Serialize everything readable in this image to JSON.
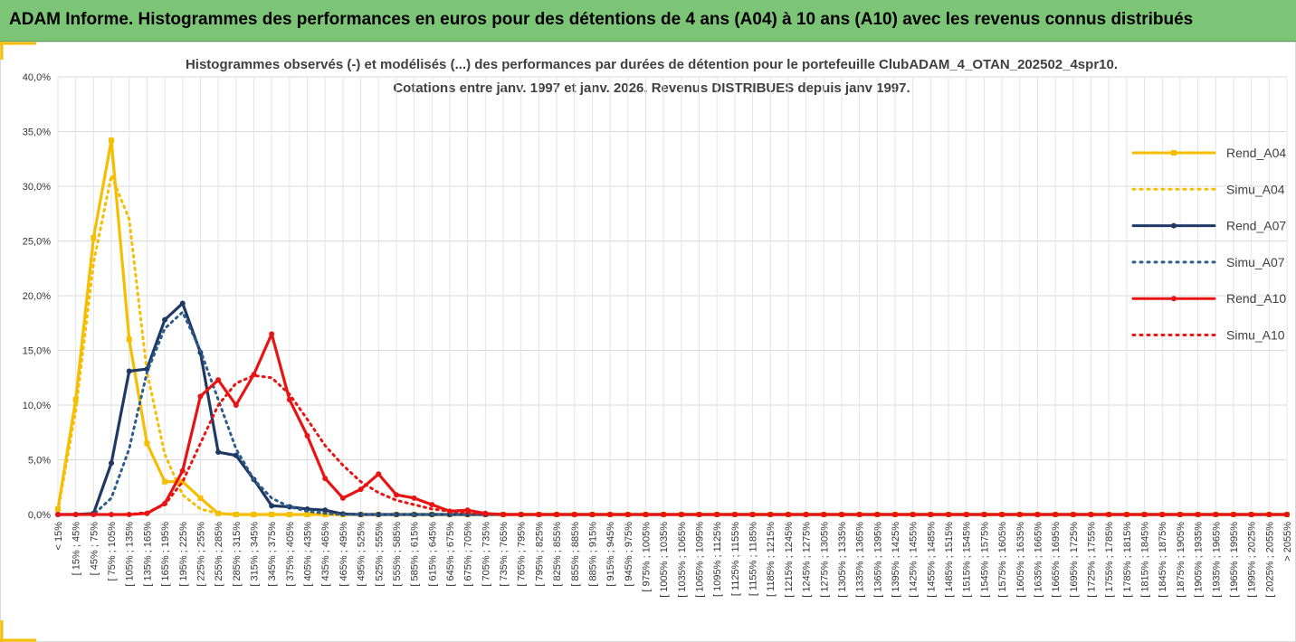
{
  "header": {
    "title": "ADAM Informe. Histogrammes des performances en euros pour des détentions de 4 ans (A04) à 10 ans (A10) avec les revenus connus distribués"
  },
  "chart_data": {
    "type": "line",
    "title": "Histogrammes observés (-) et modélisés (...) des performances par durées de détention pour le portefeuille ClubADAM_4_OTAN_202502_4spr10.",
    "subtitle": "Cotations entre janv. 1997 et janv. 2026. Revenus DISTRIBUES depuis janv 1997.",
    "categories": [
      "< 15%",
      "[ 15% ; 45%",
      "[ 45% ; 75%",
      "[ 75% ; 105%",
      "[ 105% ; 135%",
      "[ 135% ; 165%",
      "[ 165% ; 195%",
      "[ 195% ; 225%",
      "[ 225% ; 255%",
      "[ 255% ; 285%",
      "[ 285% ; 315%",
      "[ 315% ; 345%",
      "[ 345% ; 375%",
      "[ 375% ; 405%",
      "[ 405% ; 435%",
      "[ 435% ; 465%",
      "[ 465% ; 495%",
      "[ 495% ; 525%",
      "[ 525% ; 555%",
      "[ 555% ; 585%",
      "[ 585% ; 615%",
      "[ 615% ; 645%",
      "[ 645% ; 675%",
      "[ 675% ; 705%",
      "[ 705% ; 735%",
      "[ 735% ; 765%",
      "[ 765% ; 795%",
      "[ 795% ; 825%",
      "[ 825% ; 855%",
      "[ 855% ; 885%",
      "[ 885% ; 915%",
      "[ 915% ; 945%",
      "[ 945% ; 975%",
      "[ 975% ; 1005%",
      "[ 1005% ; 1035%",
      "[ 1035% ; 1065%",
      "[ 1065% ; 1095%",
      "[ 1095% ; 1125%",
      "[ 1125% ; 1155%",
      "[ 1155% ; 1185%",
      "[ 1185% ; 1215%",
      "[ 1215% ; 1245%",
      "[ 1245% ; 1275%",
      "[ 1275% ; 1305%",
      "[ 1305% ; 1335%",
      "[ 1335% ; 1365%",
      "[ 1365% ; 1395%",
      "[ 1395% ; 1425%",
      "[ 1425% ; 1455%",
      "[ 1455% ; 1485%",
      "[ 1485% ; 1515%",
      "[ 1515% ; 1545%",
      "[ 1545% ; 1575%",
      "[ 1575% ; 1605%",
      "[ 1605% ; 1635%",
      "[ 1635% ; 1665%",
      "[ 1665% ; 1695%",
      "[ 1695% ; 1725%",
      "[ 1725% ; 1755%",
      "[ 1755% ; 1785%",
      "[ 1785% ; 1815%",
      "[ 1815% ; 1845%",
      "[ 1845% ; 1875%",
      "[ 1875% ; 1905%",
      "[ 1905% ; 1935%",
      "[ 1935% ; 1965%",
      "[ 1965% ; 1995%",
      "[ 1995% ; 2025%",
      "[ 2025% ; 2055%",
      "> 2055%"
    ],
    "ylim": [
      0,
      40
    ],
    "yticks": [
      {
        "value": 0,
        "label": "0,0%"
      },
      {
        "value": 5,
        "label": "5,0%"
      },
      {
        "value": 10,
        "label": "10,0%"
      },
      {
        "value": 15,
        "label": "15,0%"
      },
      {
        "value": 20,
        "label": "20,0%"
      },
      {
        "value": 25,
        "label": "25,0%"
      },
      {
        "value": 30,
        "label": "30,0%"
      },
      {
        "value": 35,
        "label": "35,0%"
      },
      {
        "value": 40,
        "label": "40,0%"
      }
    ],
    "grid": true,
    "legend": "right",
    "series": [
      {
        "name": "Rend_A04",
        "color": "#f5be00",
        "line_style": "solid",
        "marker": "square",
        "values": [
          0.5,
          10.5,
          25.3,
          34.2,
          16.0,
          6.5,
          3.0,
          3.0,
          1.5,
          0.1,
          0,
          0,
          0,
          0,
          0,
          0,
          0,
          0,
          0,
          0,
          0,
          0,
          0,
          0,
          0,
          0,
          0,
          0,
          0,
          0,
          0,
          0,
          0,
          0,
          0,
          0,
          0,
          0,
          0,
          0,
          0,
          0,
          0,
          0,
          0,
          0,
          0,
          0,
          0,
          0,
          0,
          0,
          0,
          0,
          0,
          0,
          0,
          0,
          0,
          0,
          0,
          0,
          0,
          0,
          0,
          0,
          0,
          0,
          0,
          0
        ]
      },
      {
        "name": "Simu_A04",
        "color": "#f5be00",
        "line_style": "dotted",
        "marker": null,
        "values": [
          0.3,
          9.5,
          23,
          31,
          27,
          13,
          5.5,
          1.8,
          0.5,
          0.1,
          0,
          0,
          0,
          0,
          0,
          0,
          0,
          0,
          0,
          0,
          0,
          0,
          0,
          0,
          0,
          0,
          0,
          0,
          0,
          0,
          0,
          0,
          0,
          0,
          0,
          0,
          0,
          0,
          0,
          0,
          0,
          0,
          0,
          0,
          0,
          0,
          0,
          0,
          0,
          0,
          0,
          0,
          0,
          0,
          0,
          0,
          0,
          0,
          0,
          0,
          0,
          0,
          0,
          0,
          0,
          0,
          0,
          0,
          0,
          0
        ]
      },
      {
        "name": "Rend_A07",
        "color": "#1f3864",
        "line_style": "solid",
        "marker": "circle",
        "values": [
          0,
          0,
          0.1,
          4.7,
          13.1,
          13.3,
          17.8,
          19.3,
          14.8,
          5.7,
          5.4,
          3.2,
          0.8,
          0.7,
          0.5,
          0.4,
          0.05,
          0,
          0,
          0,
          0,
          0,
          0,
          0,
          0,
          0,
          0,
          0,
          0,
          0,
          0,
          0,
          0,
          0,
          0,
          0,
          0,
          0,
          0,
          0,
          0,
          0,
          0,
          0,
          0,
          0,
          0,
          0,
          0,
          0,
          0,
          0,
          0,
          0,
          0,
          0,
          0,
          0,
          0,
          0,
          0,
          0,
          0,
          0,
          0,
          0,
          0,
          0,
          0,
          0
        ]
      },
      {
        "name": "Simu_A07",
        "color": "#2e5d8a",
        "line_style": "dotted",
        "marker": null,
        "values": [
          0,
          0,
          0,
          1.5,
          6,
          13,
          17,
          18.5,
          15,
          10.5,
          6,
          3.2,
          1.5,
          0.7,
          0.3,
          0.1,
          0,
          0,
          0,
          0,
          0,
          0,
          0,
          0,
          0,
          0,
          0,
          0,
          0,
          0,
          0,
          0,
          0,
          0,
          0,
          0,
          0,
          0,
          0,
          0,
          0,
          0,
          0,
          0,
          0,
          0,
          0,
          0,
          0,
          0,
          0,
          0,
          0,
          0,
          0,
          0,
          0,
          0,
          0,
          0,
          0,
          0,
          0,
          0,
          0,
          0,
          0,
          0,
          0,
          0
        ]
      },
      {
        "name": "Rend_A10",
        "color": "#e81414",
        "line_style": "solid",
        "marker": "circle",
        "values": [
          0,
          0,
          0,
          0,
          0,
          0.1,
          1.0,
          4.0,
          10.8,
          12.3,
          10.0,
          12.8,
          16.5,
          10.5,
          7.2,
          3.3,
          1.5,
          2.3,
          3.7,
          1.8,
          1.5,
          0.9,
          0.3,
          0.4,
          0.1,
          0,
          0,
          0,
          0,
          0,
          0,
          0,
          0,
          0,
          0,
          0,
          0,
          0,
          0,
          0,
          0,
          0,
          0,
          0,
          0,
          0,
          0,
          0,
          0,
          0,
          0,
          0,
          0,
          0,
          0,
          0,
          0,
          0,
          0,
          0,
          0,
          0,
          0,
          0,
          0,
          0,
          0,
          0,
          0,
          0
        ]
      },
      {
        "name": "Simu_A10",
        "color": "#e81414",
        "line_style": "dotted",
        "marker": null,
        "values": [
          0,
          0,
          0,
          0,
          0,
          0.2,
          0.9,
          3,
          6.5,
          10,
          12,
          12.7,
          12.5,
          11,
          8.7,
          6.3,
          4.5,
          3,
          2,
          1.3,
          0.9,
          0.5,
          0.3,
          0.15,
          0.05,
          0,
          0,
          0,
          0,
          0,
          0,
          0,
          0,
          0,
          0,
          0,
          0,
          0,
          0,
          0,
          0,
          0,
          0,
          0,
          0,
          0,
          0,
          0,
          0,
          0,
          0,
          0,
          0,
          0,
          0,
          0,
          0,
          0,
          0,
          0,
          0,
          0,
          0,
          0,
          0,
          0,
          0,
          0,
          0,
          0
        ]
      }
    ]
  }
}
